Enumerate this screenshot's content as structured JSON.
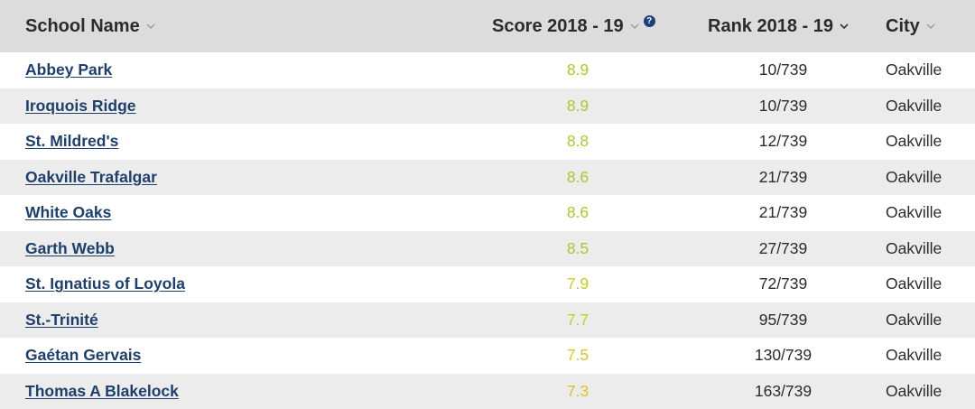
{
  "header": {
    "school_name": "School Name",
    "score": "Score 2018 - 19",
    "help": "?",
    "rank": "Rank 2018 - 19",
    "city": "City"
  },
  "rows": [
    {
      "name": "Abbey Park",
      "score": "8.9",
      "score_color": "#a8c832",
      "rank": "10/739",
      "city": "Oakville"
    },
    {
      "name": "Iroquois Ridge",
      "score": "8.9",
      "score_color": "#a8c832",
      "rank": "10/739",
      "city": "Oakville"
    },
    {
      "name": "St. Mildred's",
      "score": "8.8",
      "score_color": "#a8c832",
      "rank": "12/739",
      "city": "Oakville"
    },
    {
      "name": "Oakville Trafalgar",
      "score": "8.6",
      "score_color": "#a8c832",
      "rank": "21/739",
      "city": "Oakville"
    },
    {
      "name": "White Oaks",
      "score": "8.6",
      "score_color": "#a8c832",
      "rank": "21/739",
      "city": "Oakville"
    },
    {
      "name": "Garth Webb",
      "score": "8.5",
      "score_color": "#a8c832",
      "rank": "27/739",
      "city": "Oakville"
    },
    {
      "name": "St. Ignatius of Loyola",
      "score": "7.9",
      "score_color": "#c2cc2a",
      "rank": "72/739",
      "city": "Oakville"
    },
    {
      "name": "St.-Trinité",
      "score": "7.7",
      "score_color": "#c9cc26",
      "rank": "95/739",
      "city": "Oakville"
    },
    {
      "name": "Gaétan Gervais",
      "score": "7.5",
      "score_color": "#d6c52a",
      "rank": "130/739",
      "city": "Oakville"
    },
    {
      "name": "Thomas A Blakelock",
      "score": "7.3",
      "score_color": "#e0c12c",
      "rank": "163/739",
      "city": "Oakville"
    }
  ],
  "colors": {
    "header_bg": "#dcdcdc",
    "alt_row_bg": "#ececec",
    "link": "#1f3f6b",
    "help_icon": "#1f3d7a"
  }
}
